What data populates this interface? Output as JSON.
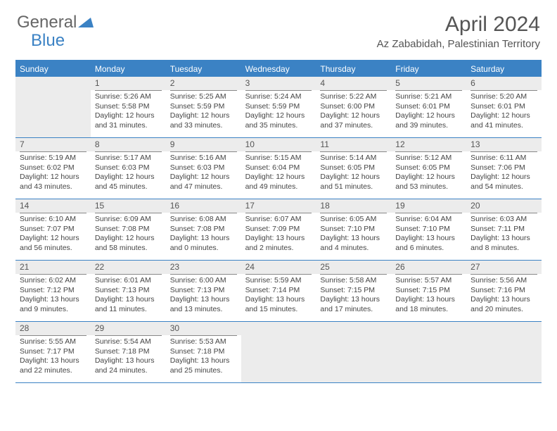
{
  "brand": {
    "part1": "General",
    "part2": "Blue"
  },
  "title": "April 2024",
  "location": "Az Zababidah, Palestinian Territory",
  "colors": {
    "accent": "#3b82c4",
    "shaded": "#ececec",
    "text": "#444444"
  },
  "dayNames": [
    "Sunday",
    "Monday",
    "Tuesday",
    "Wednesday",
    "Thursday",
    "Friday",
    "Saturday"
  ],
  "weeks": [
    [
      {
        "blank": true
      },
      {
        "n": "1",
        "sr": "Sunrise: 5:26 AM",
        "ss": "Sunset: 5:58 PM",
        "d1": "Daylight: 12 hours",
        "d2": "and 31 minutes."
      },
      {
        "n": "2",
        "sr": "Sunrise: 5:25 AM",
        "ss": "Sunset: 5:59 PM",
        "d1": "Daylight: 12 hours",
        "d2": "and 33 minutes."
      },
      {
        "n": "3",
        "sr": "Sunrise: 5:24 AM",
        "ss": "Sunset: 5:59 PM",
        "d1": "Daylight: 12 hours",
        "d2": "and 35 minutes."
      },
      {
        "n": "4",
        "sr": "Sunrise: 5:22 AM",
        "ss": "Sunset: 6:00 PM",
        "d1": "Daylight: 12 hours",
        "d2": "and 37 minutes."
      },
      {
        "n": "5",
        "sr": "Sunrise: 5:21 AM",
        "ss": "Sunset: 6:01 PM",
        "d1": "Daylight: 12 hours",
        "d2": "and 39 minutes."
      },
      {
        "n": "6",
        "sr": "Sunrise: 5:20 AM",
        "ss": "Sunset: 6:01 PM",
        "d1": "Daylight: 12 hours",
        "d2": "and 41 minutes."
      }
    ],
    [
      {
        "n": "7",
        "sr": "Sunrise: 5:19 AM",
        "ss": "Sunset: 6:02 PM",
        "d1": "Daylight: 12 hours",
        "d2": "and 43 minutes."
      },
      {
        "n": "8",
        "sr": "Sunrise: 5:17 AM",
        "ss": "Sunset: 6:03 PM",
        "d1": "Daylight: 12 hours",
        "d2": "and 45 minutes."
      },
      {
        "n": "9",
        "sr": "Sunrise: 5:16 AM",
        "ss": "Sunset: 6:03 PM",
        "d1": "Daylight: 12 hours",
        "d2": "and 47 minutes."
      },
      {
        "n": "10",
        "sr": "Sunrise: 5:15 AM",
        "ss": "Sunset: 6:04 PM",
        "d1": "Daylight: 12 hours",
        "d2": "and 49 minutes."
      },
      {
        "n": "11",
        "sr": "Sunrise: 5:14 AM",
        "ss": "Sunset: 6:05 PM",
        "d1": "Daylight: 12 hours",
        "d2": "and 51 minutes."
      },
      {
        "n": "12",
        "sr": "Sunrise: 5:12 AM",
        "ss": "Sunset: 6:05 PM",
        "d1": "Daylight: 12 hours",
        "d2": "and 53 minutes."
      },
      {
        "n": "13",
        "sr": "Sunrise: 6:11 AM",
        "ss": "Sunset: 7:06 PM",
        "d1": "Daylight: 12 hours",
        "d2": "and 54 minutes."
      }
    ],
    [
      {
        "n": "14",
        "sr": "Sunrise: 6:10 AM",
        "ss": "Sunset: 7:07 PM",
        "d1": "Daylight: 12 hours",
        "d2": "and 56 minutes."
      },
      {
        "n": "15",
        "sr": "Sunrise: 6:09 AM",
        "ss": "Sunset: 7:08 PM",
        "d1": "Daylight: 12 hours",
        "d2": "and 58 minutes."
      },
      {
        "n": "16",
        "sr": "Sunrise: 6:08 AM",
        "ss": "Sunset: 7:08 PM",
        "d1": "Daylight: 13 hours",
        "d2": "and 0 minutes."
      },
      {
        "n": "17",
        "sr": "Sunrise: 6:07 AM",
        "ss": "Sunset: 7:09 PM",
        "d1": "Daylight: 13 hours",
        "d2": "and 2 minutes."
      },
      {
        "n": "18",
        "sr": "Sunrise: 6:05 AM",
        "ss": "Sunset: 7:10 PM",
        "d1": "Daylight: 13 hours",
        "d2": "and 4 minutes."
      },
      {
        "n": "19",
        "sr": "Sunrise: 6:04 AM",
        "ss": "Sunset: 7:10 PM",
        "d1": "Daylight: 13 hours",
        "d2": "and 6 minutes."
      },
      {
        "n": "20",
        "sr": "Sunrise: 6:03 AM",
        "ss": "Sunset: 7:11 PM",
        "d1": "Daylight: 13 hours",
        "d2": "and 8 minutes."
      }
    ],
    [
      {
        "n": "21",
        "sr": "Sunrise: 6:02 AM",
        "ss": "Sunset: 7:12 PM",
        "d1": "Daylight: 13 hours",
        "d2": "and 9 minutes."
      },
      {
        "n": "22",
        "sr": "Sunrise: 6:01 AM",
        "ss": "Sunset: 7:13 PM",
        "d1": "Daylight: 13 hours",
        "d2": "and 11 minutes."
      },
      {
        "n": "23",
        "sr": "Sunrise: 6:00 AM",
        "ss": "Sunset: 7:13 PM",
        "d1": "Daylight: 13 hours",
        "d2": "and 13 minutes."
      },
      {
        "n": "24",
        "sr": "Sunrise: 5:59 AM",
        "ss": "Sunset: 7:14 PM",
        "d1": "Daylight: 13 hours",
        "d2": "and 15 minutes."
      },
      {
        "n": "25",
        "sr": "Sunrise: 5:58 AM",
        "ss": "Sunset: 7:15 PM",
        "d1": "Daylight: 13 hours",
        "d2": "and 17 minutes."
      },
      {
        "n": "26",
        "sr": "Sunrise: 5:57 AM",
        "ss": "Sunset: 7:15 PM",
        "d1": "Daylight: 13 hours",
        "d2": "and 18 minutes."
      },
      {
        "n": "27",
        "sr": "Sunrise: 5:56 AM",
        "ss": "Sunset: 7:16 PM",
        "d1": "Daylight: 13 hours",
        "d2": "and 20 minutes."
      }
    ],
    [
      {
        "n": "28",
        "sr": "Sunrise: 5:55 AM",
        "ss": "Sunset: 7:17 PM",
        "d1": "Daylight: 13 hours",
        "d2": "and 22 minutes."
      },
      {
        "n": "29",
        "sr": "Sunrise: 5:54 AM",
        "ss": "Sunset: 7:18 PM",
        "d1": "Daylight: 13 hours",
        "d2": "and 24 minutes."
      },
      {
        "n": "30",
        "sr": "Sunrise: 5:53 AM",
        "ss": "Sunset: 7:18 PM",
        "d1": "Daylight: 13 hours",
        "d2": "and 25 minutes."
      },
      {
        "blank": true
      },
      {
        "blank": true
      },
      {
        "blank": true
      },
      {
        "blank": true
      }
    ]
  ]
}
